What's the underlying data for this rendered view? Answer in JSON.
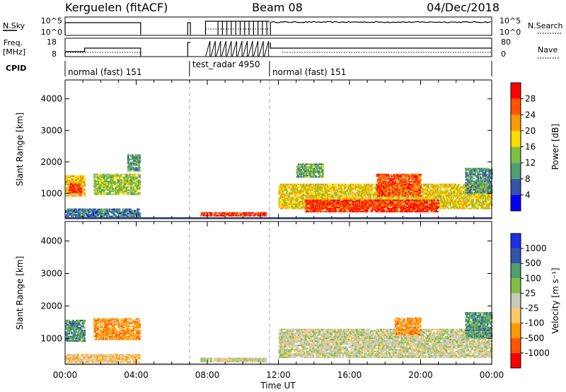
{
  "header": {
    "station": "Kerguelen (fitACF)",
    "beam": "Beam 08",
    "date": "04/Dec/2018"
  },
  "summary": {
    "left_labels": {
      "nsky": "N.Sky",
      "freq": "Freq.",
      "freq_unit": "[MHz]",
      "cpid": "CPID"
    },
    "right_labels": {
      "nsearch": "N.Search",
      "nave": "Nave"
    },
    "nsky_ticks": [
      "10^5",
      "10^0"
    ],
    "freq_ticks": [
      "18",
      "8"
    ],
    "nave_ticks": [
      "80",
      "0"
    ],
    "cpid_segments": [
      {
        "label": "normal (fast) 151",
        "start_h": 0.0,
        "end_h": 4.25
      },
      {
        "label": "test_radar 4950",
        "start_h": 7.0,
        "end_h": 11.5
      },
      {
        "label": "normal (fast) 151",
        "start_h": 11.5,
        "end_h": 24.0
      }
    ]
  },
  "colors": {
    "power": [
      "#0000ff",
      "#3355aa",
      "#4f9e6e",
      "#80c040",
      "#ffdd00",
      "#ff9900",
      "#ff5500",
      "#ff0000"
    ],
    "velocity": [
      "#ff0000",
      "#ff5500",
      "#ff9900",
      "#ffc866",
      "#c8c8be",
      "#80c040",
      "#4f9e6e",
      "#3355aa",
      "#1e2ee0"
    ]
  },
  "chart_data": [
    {
      "type": "heatmap",
      "title": "Power",
      "xlabel": "Time UT",
      "ylabel": "Slant Range [km]",
      "xlim": [
        0,
        24
      ],
      "ylim": [
        200,
        4600
      ],
      "xticks": [
        "00:00",
        "04:00",
        "08:00",
        "12:00",
        "16:00",
        "20:00",
        "00:00"
      ],
      "yticks": [
        "1000",
        "2000",
        "3000",
        "4000"
      ],
      "colorbar": {
        "label": "Power [dB]",
        "ticks": [
          "4",
          "8",
          "12",
          "16",
          "20",
          "24",
          "28"
        ],
        "range": [
          0,
          32
        ]
      },
      "regions": [
        {
          "t0": 0.0,
          "t1": 1.1,
          "r0": 900,
          "r1": 1550,
          "level": 20
        },
        {
          "t0": 0.2,
          "t1": 0.9,
          "r0": 1000,
          "r1": 1300,
          "level": 28
        },
        {
          "t0": 1.6,
          "t1": 4.2,
          "r0": 950,
          "r1": 1600,
          "level": 14
        },
        {
          "t0": 3.5,
          "t1": 4.2,
          "r0": 1700,
          "r1": 2200,
          "level": 10
        },
        {
          "t0": 0.0,
          "t1": 4.2,
          "r0": 250,
          "r1": 500,
          "level": 8
        },
        {
          "t0": 12.0,
          "t1": 24.0,
          "r0": 500,
          "r1": 1300,
          "level": 18
        },
        {
          "t0": 13.5,
          "t1": 21.0,
          "r0": 400,
          "r1": 800,
          "level": 28
        },
        {
          "t0": 17.5,
          "t1": 20.0,
          "r0": 900,
          "r1": 1600,
          "level": 26
        },
        {
          "t0": 13.0,
          "t1": 14.5,
          "r0": 1500,
          "r1": 1950,
          "level": 12
        },
        {
          "t0": 22.5,
          "t1": 24.0,
          "r0": 1000,
          "r1": 1800,
          "level": 10
        },
        {
          "t0": 7.6,
          "t1": 11.3,
          "r0": 270,
          "r1": 380,
          "level": 28
        }
      ]
    },
    {
      "type": "heatmap",
      "title": "Velocity",
      "xlabel": "Time UT",
      "ylabel": "Slant Range [km]",
      "xlim": [
        0,
        24
      ],
      "ylim": [
        200,
        4600
      ],
      "xticks": [
        "00:00",
        "04:00",
        "08:00",
        "12:00",
        "16:00",
        "20:00",
        "00:00"
      ],
      "yticks": [
        "1000",
        "2000",
        "3000",
        "4000"
      ],
      "colorbar": {
        "label": "Velocity [m s⁻¹]",
        "ticks": [
          "-1000",
          "-500",
          "-100",
          "-25",
          "25",
          "100",
          "500",
          "1000"
        ]
      },
      "regions": [
        {
          "t0": 0.0,
          "t1": 1.1,
          "r0": 900,
          "r1": 1550,
          "level": 6
        },
        {
          "t0": 1.6,
          "t1": 4.2,
          "r0": 950,
          "r1": 1600,
          "level": 2
        },
        {
          "t0": 0.0,
          "t1": 4.2,
          "r0": 250,
          "r1": 500,
          "level": 3
        },
        {
          "t0": 12.0,
          "t1": 24.0,
          "r0": 400,
          "r1": 1300,
          "level": 4
        },
        {
          "t0": 18.5,
          "t1": 20.0,
          "r0": 1100,
          "r1": 1600,
          "level": 2
        },
        {
          "t0": 22.5,
          "t1": 24.0,
          "r0": 1000,
          "r1": 1800,
          "level": 6
        },
        {
          "t0": 7.6,
          "t1": 11.3,
          "r0": 270,
          "r1": 380,
          "level": 4
        }
      ]
    }
  ]
}
